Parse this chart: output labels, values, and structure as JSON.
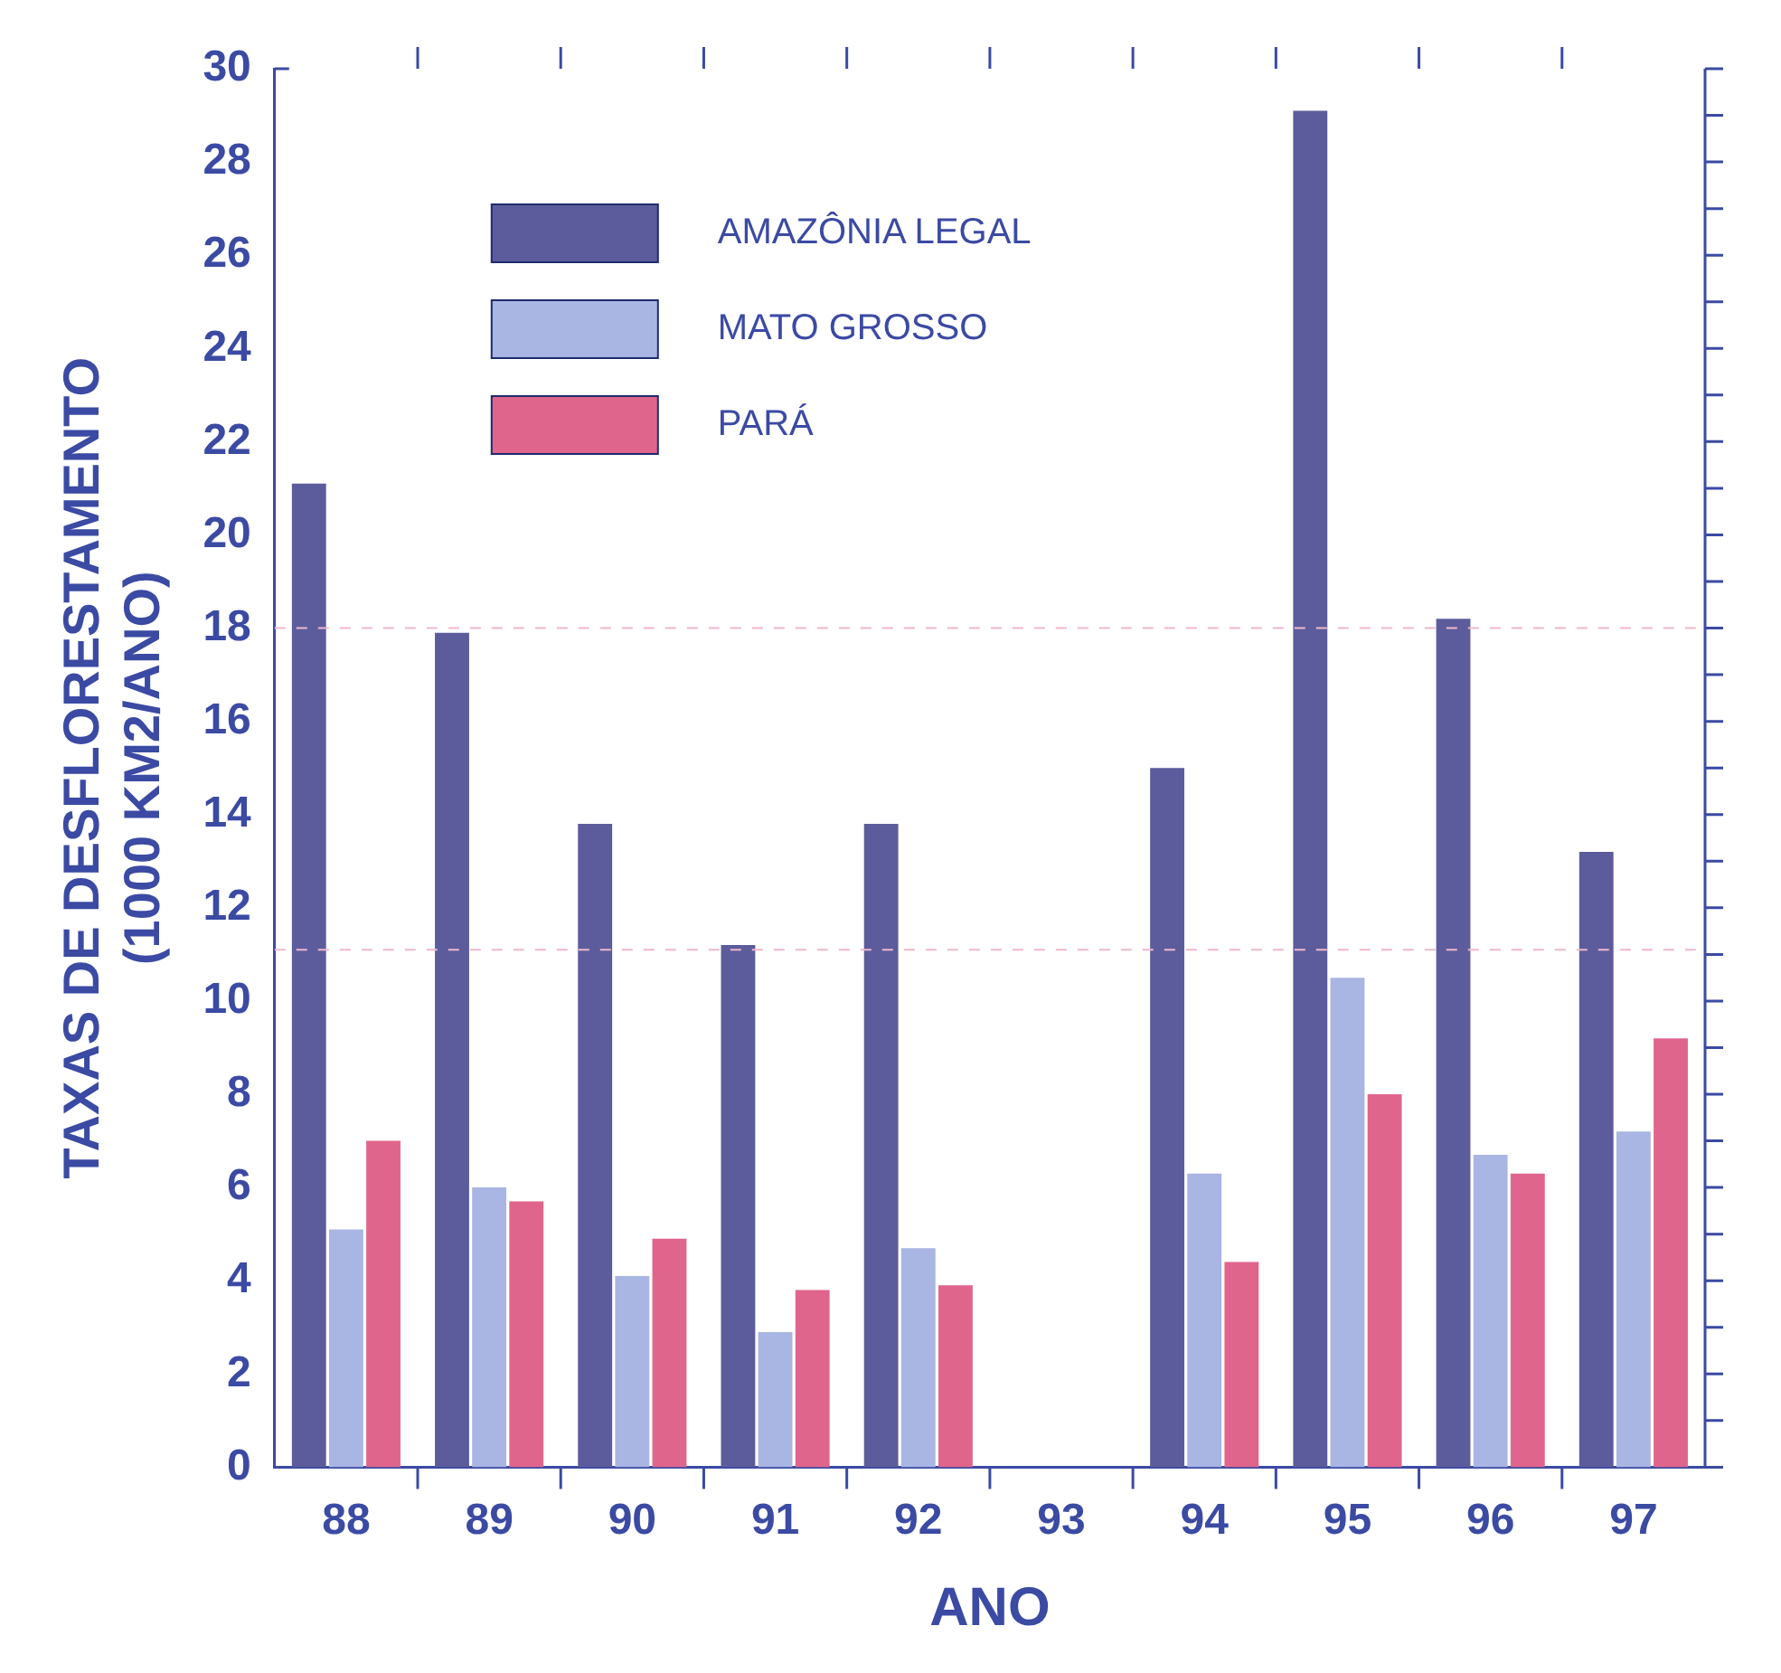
{
  "chart_data": {
    "type": "bar",
    "xlabel": "ANO",
    "ylabel": "TAXAS DE DESFLORESTAMENTO\n(1000 KM2/ANO)",
    "categories": [
      "88",
      "89",
      "90",
      "91",
      "92",
      "93",
      "94",
      "95",
      "96",
      "97"
    ],
    "series": [
      {
        "name": "AMAZÔNIA LEGAL",
        "color": "#5c5c9c",
        "values": [
          21.1,
          17.9,
          13.8,
          11.2,
          13.8,
          null,
          15.0,
          29.1,
          18.2,
          13.2
        ]
      },
      {
        "name": "MATO GROSSO",
        "color": "#a9b5e2",
        "values": [
          5.1,
          6.0,
          4.1,
          2.9,
          4.7,
          null,
          6.3,
          10.5,
          6.7,
          7.2
        ]
      },
      {
        "name": "PARÁ",
        "color": "#e0658c",
        "values": [
          7.0,
          5.7,
          4.9,
          3.8,
          3.9,
          null,
          4.4,
          8.0,
          6.3,
          9.2
        ]
      }
    ],
    "ylim": [
      0,
      30
    ],
    "yticks": [
      0,
      2,
      4,
      6,
      8,
      10,
      12,
      14,
      16,
      18,
      20,
      22,
      24,
      26,
      28,
      30
    ],
    "ref_lines": [
      {
        "axis": "y",
        "value": 18,
        "color": "#f0b8cc",
        "line_style": "dashed"
      },
      {
        "axis": "y",
        "value": 11.1,
        "color": "#f0b8cc",
        "line_style": "dashed"
      }
    ],
    "grid": false,
    "legend": "top left"
  }
}
